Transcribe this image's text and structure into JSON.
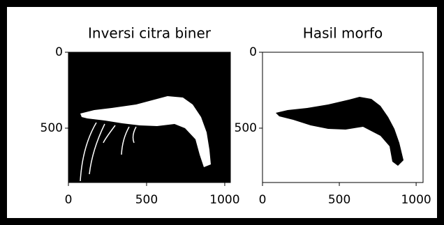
{
  "chart_data": [
    {
      "type": "image",
      "title": "Inversi citra biner",
      "xlim": [
        0,
        1036
      ],
      "ylim": [
        858,
        0
      ],
      "xticks": [
        0,
        500,
        1000
      ],
      "yticks": [
        0,
        500
      ]
    },
    {
      "type": "image",
      "title": "Hasil morfo",
      "xlim": [
        0,
        1045
      ],
      "ylim": [
        858,
        0
      ],
      "xticks": [
        0,
        500,
        1000
      ],
      "yticks": [
        0,
        500
      ]
    }
  ]
}
